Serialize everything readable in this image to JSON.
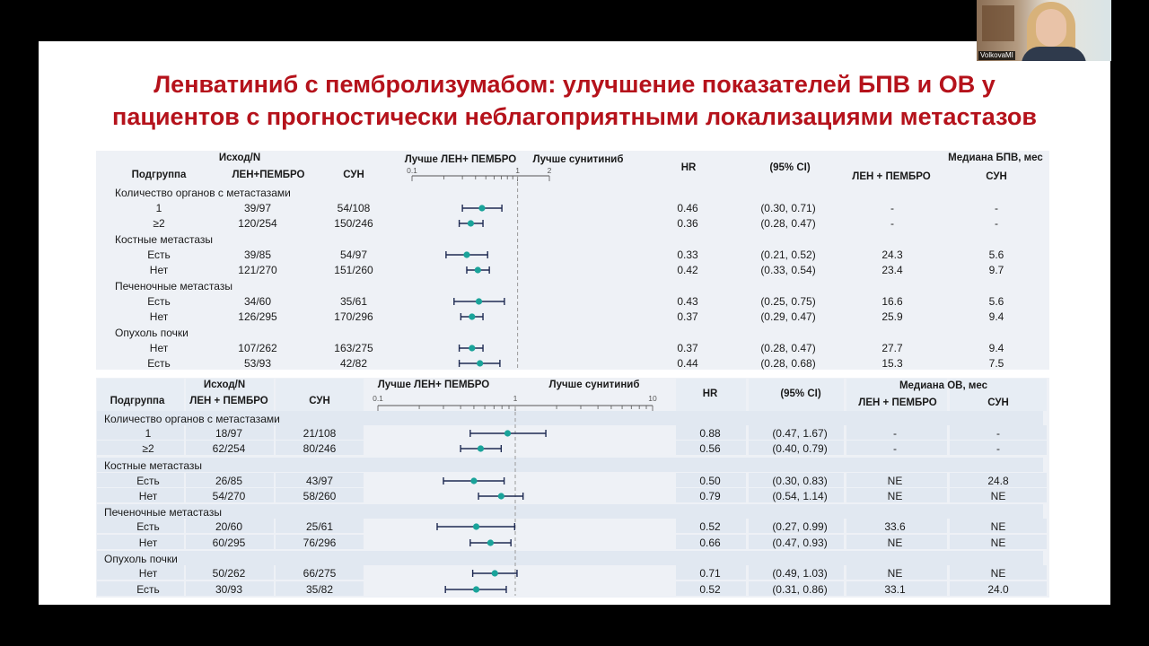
{
  "webcam": {
    "label": "VolkovaMI"
  },
  "slide": {
    "title_lines": [
      "Ленватиниб с пембролизумабом: улучшение показателей БПВ и ОВ у",
      "пациентов с прогностически неблагоприятными локализациями метастазов"
    ]
  },
  "pfs": {
    "headers": {
      "outcome_n": "Исход/N",
      "subgroup": "Подгруппа",
      "arm_len": "ЛЕН+ПЕМБРО",
      "arm_sun": "СУН",
      "favors_left": "Лучше ЛЕН+ ПЕМБРО",
      "favors_right": "Лучше сунитиниб",
      "hr": "HR",
      "ci": "(95% CI)",
      "median": "Медиана БПВ, мес",
      "median_len": "ЛЕН + ПЕМБРО",
      "median_sun": "СУН"
    },
    "axis_ticks": [
      "0.1",
      "1",
      "2"
    ],
    "groups": [
      {
        "name": "Количество органов с метастазами",
        "rows": [
          {
            "label": "1",
            "len": "39/97",
            "sun": "54/108",
            "hr": "0.46",
            "ci": "(0.30, 0.71)",
            "med_len": "-",
            "med_sun": "-",
            "hr_val": 0.46,
            "lo": 0.3,
            "hi": 0.71
          },
          {
            "label": "≥2",
            "len": "120/254",
            "sun": "150/246",
            "hr": "0.36",
            "ci": "(0.28, 0.47)",
            "med_len": "-",
            "med_sun": "-",
            "hr_val": 0.36,
            "lo": 0.28,
            "hi": 0.47
          }
        ]
      },
      {
        "name": "Костные метастазы",
        "rows": [
          {
            "label": "Есть",
            "len": "39/85",
            "sun": "54/97",
            "hr": "0.33",
            "ci": "(0.21, 0.52)",
            "med_len": "24.3",
            "med_sun": "5.6",
            "hr_val": 0.33,
            "lo": 0.21,
            "hi": 0.52
          },
          {
            "label": "Нет",
            "len": "121/270",
            "sun": "151/260",
            "hr": "0.42",
            "ci": "(0.33, 0.54)",
            "med_len": "23.4",
            "med_sun": "9.7",
            "hr_val": 0.42,
            "lo": 0.33,
            "hi": 0.54
          }
        ]
      },
      {
        "name": "Печеночные метастазы",
        "rows": [
          {
            "label": "Есть",
            "len": "34/60",
            "sun": "35/61",
            "hr": "0.43",
            "ci": "(0.25, 0.75)",
            "med_len": "16.6",
            "med_sun": "5.6",
            "hr_val": 0.43,
            "lo": 0.25,
            "hi": 0.75
          },
          {
            "label": "Нет",
            "len": "126/295",
            "sun": "170/296",
            "hr": "0.37",
            "ci": "(0.29, 0.47)",
            "med_len": "25.9",
            "med_sun": "9.4",
            "hr_val": 0.37,
            "lo": 0.29,
            "hi": 0.47
          }
        ]
      },
      {
        "name": "Опухоль почки",
        "rows": [
          {
            "label": "Нет",
            "len": "107/262",
            "sun": "163/275",
            "hr": "0.37",
            "ci": "(0.28, 0.47)",
            "med_len": "27.7",
            "med_sun": "9.4",
            "hr_val": 0.37,
            "lo": 0.28,
            "hi": 0.47
          },
          {
            "label": "Есть",
            "len": "53/93",
            "sun": "42/82",
            "hr": "0.44",
            "ci": "(0.28, 0.68)",
            "med_len": "15.3",
            "med_sun": "7.5",
            "hr_val": 0.44,
            "lo": 0.28,
            "hi": 0.68
          }
        ]
      }
    ]
  },
  "os": {
    "headers": {
      "outcome_n": "Исход/N",
      "subgroup": "Подгруппа",
      "arm_len": "ЛЕН + ПЕМБРО",
      "arm_sun": "СУН",
      "favors_left": "Лучше ЛЕН+ ПЕМБРО",
      "favors_right": "Лучше сунитиниб",
      "hr": "HR",
      "ci": "(95% CI)",
      "median": "Медиана ОВ, мес",
      "median_len": "ЛЕН + ПЕМБРО",
      "median_sun": "СУН"
    },
    "axis_ticks": [
      "0.1",
      "1",
      "10"
    ],
    "groups": [
      {
        "name": "Количество органов с метастазами",
        "rows": [
          {
            "label": "1",
            "len": "18/97",
            "sun": "21/108",
            "hr": "0.88",
            "ci": "(0.47, 1.67)",
            "med_len": "-",
            "med_sun": "-",
            "hr_val": 0.88,
            "lo": 0.47,
            "hi": 1.67
          },
          {
            "label": "≥2",
            "len": "62/254",
            "sun": "80/246",
            "hr": "0.56",
            "ci": "(0.40, 0.79)",
            "med_len": "-",
            "med_sun": "-",
            "hr_val": 0.56,
            "lo": 0.4,
            "hi": 0.79
          }
        ]
      },
      {
        "name": "Костные метастазы",
        "rows": [
          {
            "label": "Есть",
            "len": "26/85",
            "sun": "43/97",
            "hr": "0.50",
            "ci": "(0.30, 0.83)",
            "med_len": "NE",
            "med_sun": "24.8",
            "hr_val": 0.5,
            "lo": 0.3,
            "hi": 0.83
          },
          {
            "label": "Нет",
            "len": "54/270",
            "sun": "58/260",
            "hr": "0.79",
            "ci": "(0.54, 1.14)",
            "med_len": "NE",
            "med_sun": "NE",
            "hr_val": 0.79,
            "lo": 0.54,
            "hi": 1.14
          }
        ]
      },
      {
        "name": "Печеночные метастазы",
        "rows": [
          {
            "label": "Есть",
            "len": "20/60",
            "sun": "25/61",
            "hr": "0.52",
            "ci": "(0.27, 0.99)",
            "med_len": "33.6",
            "med_sun": "NE",
            "hr_val": 0.52,
            "lo": 0.27,
            "hi": 0.99
          },
          {
            "label": "Нет",
            "len": "60/295",
            "sun": "76/296",
            "hr": "0.66",
            "ci": "(0.47, 0.93)",
            "med_len": "NE",
            "med_sun": "NE",
            "hr_val": 0.66,
            "lo": 0.47,
            "hi": 0.93
          }
        ]
      },
      {
        "name": "Опухоль почки",
        "rows": [
          {
            "label": "Нет",
            "len": "50/262",
            "sun": "66/275",
            "hr": "0.71",
            "ci": "(0.49, 1.03)",
            "med_len": "NE",
            "med_sun": "NE",
            "hr_val": 0.71,
            "lo": 0.49,
            "hi": 1.03
          },
          {
            "label": "Есть",
            "len": "30/93",
            "sun": "35/82",
            "hr": "0.52",
            "ci": "(0.31, 0.86)",
            "med_len": "33.1",
            "med_sun": "24.0",
            "hr_val": 0.52,
            "lo": 0.31,
            "hi": 0.86
          }
        ]
      }
    ]
  },
  "colors": {
    "title": "#b5121b",
    "point": "#1aa39a",
    "ci_line": "#1e2a52",
    "ref_line": "#9a9a9a"
  }
}
